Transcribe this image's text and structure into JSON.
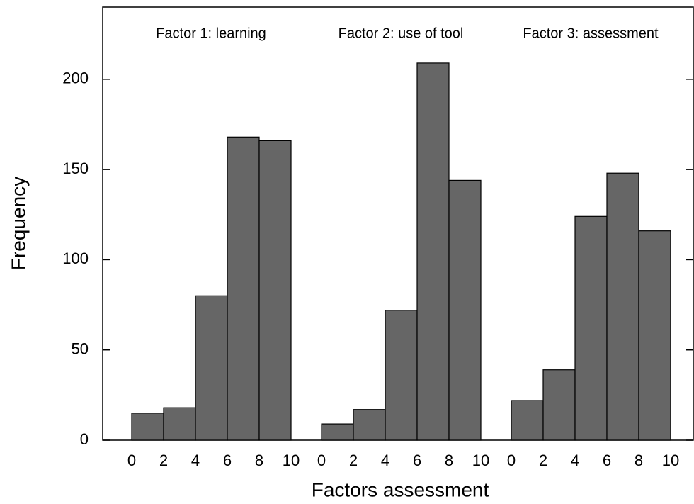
{
  "chart_data": {
    "type": "histogram",
    "xlabel": "Factors assessment",
    "ylabel": "Frequency",
    "bins": [
      0,
      2,
      4,
      6,
      8,
      10
    ],
    "series": [
      {
        "name": "Factor 1: learning",
        "values": [
          15,
          18,
          80,
          168,
          166
        ]
      },
      {
        "name": "Factor 2: use of tool",
        "values": [
          9,
          17,
          72,
          209,
          144
        ]
      },
      {
        "name": "Factor 3: assessment",
        "values": [
          22,
          39,
          124,
          148,
          116
        ]
      }
    ],
    "color": "#666666",
    "ylim": [
      0,
      240
    ],
    "yticks": [
      0,
      50,
      100,
      150,
      200
    ]
  }
}
